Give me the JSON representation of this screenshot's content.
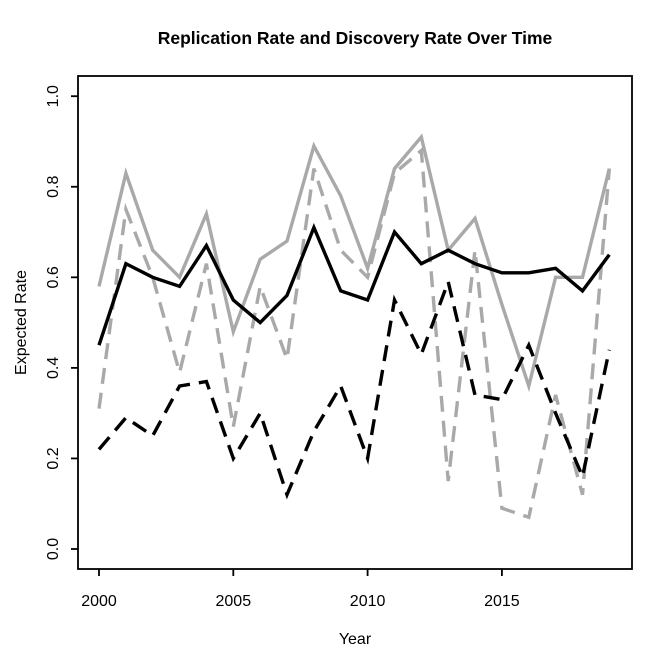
{
  "title": "Replication Rate and Discovery Rate Over Time",
  "chart_data": {
    "type": "line",
    "title": "Replication Rate and Discovery Rate Over Time",
    "xlabel": "Year",
    "ylabel": "Expected Rate",
    "x": [
      2000,
      2001,
      2002,
      2003,
      2004,
      2005,
      2006,
      2007,
      2008,
      2009,
      2010,
      2011,
      2012,
      2013,
      2014,
      2015,
      2016,
      2017,
      2018,
      2019
    ],
    "xticks": [
      "2000",
      "2005",
      "2010",
      "2015"
    ],
    "xtick_values": [
      2000,
      2005,
      2010,
      2015
    ],
    "yticks": [
      "0.0",
      "0.2",
      "0.4",
      "0.6",
      "0.8",
      "1.0"
    ],
    "ytick_values": [
      0.0,
      0.2,
      0.4,
      0.6,
      0.8,
      1.0
    ],
    "xlim": [
      1999.24,
      2019.76
    ],
    "ylim": [
      0.0,
      1.0
    ],
    "grid": false,
    "legend_position": "none",
    "background_color": "#ffffff",
    "box_color": "#000000",
    "gray_color": "#a9a9a9",
    "black_color": "#000000",
    "series": [
      {
        "name": "gray-dashed-line",
        "color": "#a9a9a9",
        "style": "dashed",
        "values": [
          0.31,
          0.75,
          0.6,
          0.39,
          0.63,
          0.27,
          0.58,
          0.42,
          0.84,
          0.66,
          0.6,
          0.83,
          0.88,
          0.15,
          0.66,
          0.09,
          0.07,
          0.34,
          0.12,
          0.84
        ]
      },
      {
        "name": "gray-solid-line",
        "color": "#a9a9a9",
        "style": "solid",
        "values": [
          0.58,
          0.83,
          0.66,
          0.6,
          0.74,
          0.48,
          0.64,
          0.68,
          0.89,
          0.78,
          0.62,
          0.84,
          0.91,
          0.66,
          0.73,
          0.54,
          0.36,
          0.6,
          0.6,
          0.84
        ]
      },
      {
        "name": "black-dashed-line",
        "color": "#000000",
        "style": "dashed",
        "values": [
          0.22,
          0.29,
          0.25,
          0.36,
          0.37,
          0.2,
          0.3,
          0.12,
          0.26,
          0.36,
          0.2,
          0.55,
          0.43,
          0.59,
          0.34,
          0.33,
          0.45,
          0.3,
          0.16,
          0.44
        ]
      },
      {
        "name": "black-solid-line",
        "color": "#000000",
        "style": "solid",
        "values": [
          0.45,
          0.63,
          0.6,
          0.58,
          0.67,
          0.55,
          0.5,
          0.56,
          0.71,
          0.57,
          0.55,
          0.7,
          0.63,
          0.66,
          0.63,
          0.61,
          0.61,
          0.62,
          0.57,
          0.65
        ]
      }
    ]
  }
}
